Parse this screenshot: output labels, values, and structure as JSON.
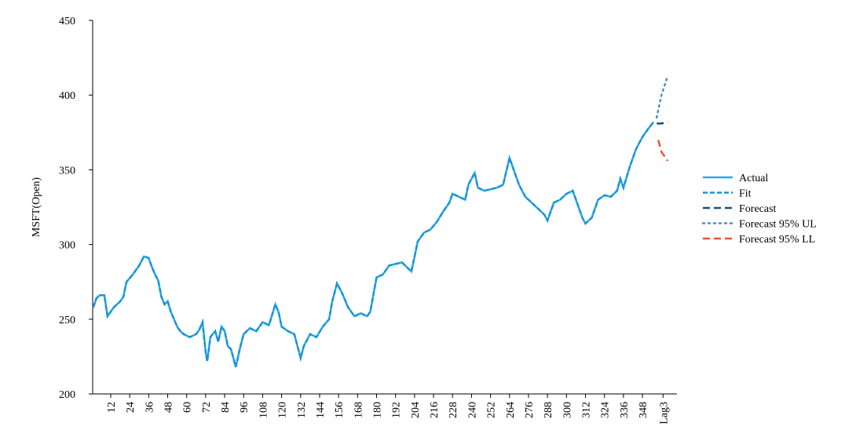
{
  "chart_data": {
    "type": "line",
    "ylabel": "MSFT(Open)",
    "ylim": [
      200,
      450
    ],
    "yticks": [
      200,
      250,
      300,
      350,
      400,
      450
    ],
    "xlim": [
      0.6,
      369.8
    ],
    "xticks": [
      12,
      24,
      36,
      48,
      60,
      72,
      84,
      96,
      108,
      120,
      132,
      144,
      156,
      168,
      180,
      192,
      204,
      216,
      228,
      240,
      252,
      264,
      276,
      288,
      300,
      312,
      324,
      336,
      348,
      {
        "value": 361,
        "label": "Lag3"
      }
    ],
    "legend": "right",
    "series": [
      {
        "name": "Actual",
        "color": "#29abe2",
        "style": "solid",
        "x": [
          1,
          3,
          5,
          8,
          10,
          14,
          18,
          20,
          22,
          26,
          30,
          33,
          36,
          38,
          40,
          42,
          44,
          46,
          48,
          50,
          52,
          54,
          56,
          58,
          62,
          66,
          68,
          70,
          72,
          73,
          75,
          78,
          80,
          82,
          84,
          86,
          88,
          90,
          91,
          94,
          96,
          100,
          104,
          108,
          112,
          116,
          118,
          120,
          124,
          128,
          130,
          132,
          134,
          138,
          142,
          146,
          150,
          152,
          155,
          158,
          162,
          166,
          170,
          174,
          176,
          180,
          184,
          188,
          192,
          196,
          200,
          202,
          206,
          210,
          214,
          218,
          222,
          226,
          228,
          232,
          236,
          238,
          242,
          244,
          248,
          252,
          256,
          260,
          264,
          266,
          270,
          274,
          278,
          282,
          286,
          288,
          292,
          296,
          300,
          304,
          306,
          310,
          312,
          316,
          320,
          324,
          328,
          332,
          334,
          336,
          340,
          344,
          348,
          352,
          355
        ],
        "values": [
          258,
          264,
          266,
          266,
          252,
          258,
          262,
          265,
          275,
          280,
          286,
          292,
          291,
          285,
          280,
          276,
          265,
          260,
          262,
          255,
          250,
          245,
          242,
          240,
          238,
          240,
          243,
          248,
          228,
          222,
          238,
          242,
          235,
          245,
          242,
          232,
          230,
          222,
          218,
          232,
          240,
          244,
          242,
          248,
          246,
          260,
          255,
          245,
          242,
          240,
          232,
          224,
          232,
          240,
          238,
          245,
          250,
          262,
          274,
          268,
          258,
          252,
          254,
          252,
          255,
          278,
          280,
          286,
          287,
          288,
          284,
          282,
          302,
          308,
          310,
          315,
          322,
          328,
          334,
          332,
          330,
          340,
          348,
          338,
          336,
          337,
          338,
          340,
          358,
          352,
          340,
          332,
          328,
          324,
          320,
          316,
          328,
          330,
          334,
          336,
          330,
          318,
          314,
          318,
          330,
          333,
          332,
          336,
          344,
          338,
          352,
          364,
          372,
          378,
          382
        ]
      },
      {
        "name": "Fit",
        "color": "#1b93d6",
        "style": "dash",
        "x": [
          1,
          3,
          5,
          8,
          10,
          14,
          18,
          20,
          22,
          26,
          30,
          33,
          36,
          38,
          40,
          42,
          44,
          46,
          48,
          50,
          52,
          54,
          56,
          58,
          62,
          66,
          68,
          70,
          72,
          73,
          75,
          78,
          80,
          82,
          84,
          86,
          88,
          90,
          91,
          94,
          96,
          100,
          104,
          108,
          112,
          116,
          118,
          120,
          124,
          128,
          130,
          132,
          134,
          138,
          142,
          146,
          150,
          152,
          155,
          158,
          162,
          166,
          170,
          174,
          176,
          180,
          184,
          188,
          192,
          196,
          200,
          202,
          206,
          210,
          214,
          218,
          222,
          226,
          228,
          232,
          236,
          238,
          242,
          244,
          248,
          252,
          256,
          260,
          264,
          266,
          270,
          274,
          278,
          282,
          286,
          288,
          292,
          296,
          300,
          304,
          306,
          310,
          312,
          316,
          320,
          324,
          328,
          332,
          334,
          336,
          340,
          344,
          348,
          352,
          355
        ],
        "values": [
          258,
          264,
          266,
          266,
          252,
          258,
          262,
          265,
          275,
          280,
          286,
          292,
          291,
          285,
          280,
          276,
          265,
          260,
          262,
          255,
          250,
          245,
          242,
          240,
          238,
          240,
          243,
          248,
          228,
          222,
          238,
          242,
          235,
          245,
          242,
          232,
          230,
          222,
          218,
          232,
          240,
          244,
          242,
          248,
          246,
          260,
          255,
          245,
          242,
          240,
          232,
          224,
          232,
          240,
          238,
          245,
          250,
          262,
          274,
          268,
          258,
          252,
          254,
          252,
          255,
          278,
          280,
          286,
          287,
          288,
          284,
          282,
          302,
          308,
          310,
          315,
          322,
          328,
          334,
          332,
          330,
          340,
          348,
          338,
          336,
          337,
          338,
          340,
          358,
          352,
          340,
          332,
          328,
          324,
          320,
          316,
          328,
          330,
          334,
          336,
          330,
          318,
          314,
          318,
          330,
          333,
          332,
          336,
          344,
          338,
          352,
          364,
          372,
          378,
          382
        ]
      },
      {
        "name": "Forecast",
        "color": "#1f4e79",
        "style": "longdash",
        "x": [
          357,
          360,
          364
        ],
        "values": [
          381,
          381,
          382
        ]
      },
      {
        "name": "Forecast 95% UL",
        "color": "#4a8fc8",
        "style": "dot",
        "x": [
          357,
          360,
          364
        ],
        "values": [
          385,
          400,
          413
        ]
      },
      {
        "name": "Forecast 95% LL",
        "color": "#e8543a",
        "style": "longdash",
        "x": [
          358,
          360,
          364
        ],
        "values": [
          370,
          362,
          356
        ]
      }
    ]
  }
}
